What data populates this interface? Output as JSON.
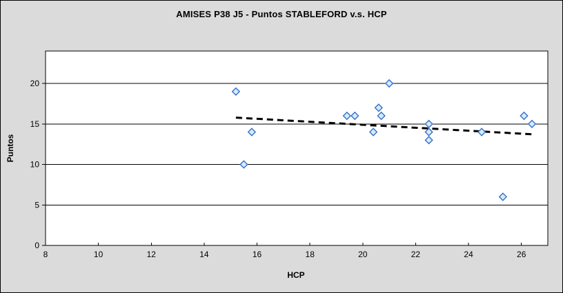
{
  "window": {
    "background_color": "#dbdbdb",
    "plot_background_color": "#ffffff",
    "border_color": "#000000"
  },
  "chart_data": {
    "type": "scatter",
    "title": "AMISES P38 J5 - Puntos STABLEFORD v.s. HCP",
    "xlabel": "HCP",
    "ylabel": "Puntos",
    "xlim": [
      8,
      27
    ],
    "ylim": [
      0,
      24
    ],
    "xticks": [
      8,
      10,
      12,
      14,
      16,
      18,
      20,
      22,
      24,
      26
    ],
    "yticks": [
      0,
      5,
      10,
      15,
      20
    ],
    "grid": "horizontal-only",
    "legend_position": "none",
    "points": [
      [
        15.2,
        19
      ],
      [
        15.5,
        10
      ],
      [
        15.8,
        14
      ],
      [
        19.4,
        16
      ],
      [
        19.7,
        16
      ],
      [
        20.4,
        14
      ],
      [
        20.6,
        17
      ],
      [
        20.7,
        16
      ],
      [
        21.0,
        20
      ],
      [
        22.5,
        15
      ],
      [
        22.5,
        14
      ],
      [
        22.5,
        13
      ],
      [
        24.5,
        14
      ],
      [
        25.3,
        6
      ],
      [
        26.1,
        16
      ],
      [
        26.4,
        15
      ]
    ],
    "trendline": {
      "type": "linear",
      "style": "dashed",
      "x1": 15.2,
      "y1": 15.78,
      "x2": 26.4,
      "y2": 13.72
    },
    "colors": {
      "marker_fill": "#cdeffa",
      "marker_stroke": "#3f6bc9",
      "trend": "#000000",
      "grid": "#000000",
      "axis": "#000000",
      "text": "#000000"
    }
  }
}
